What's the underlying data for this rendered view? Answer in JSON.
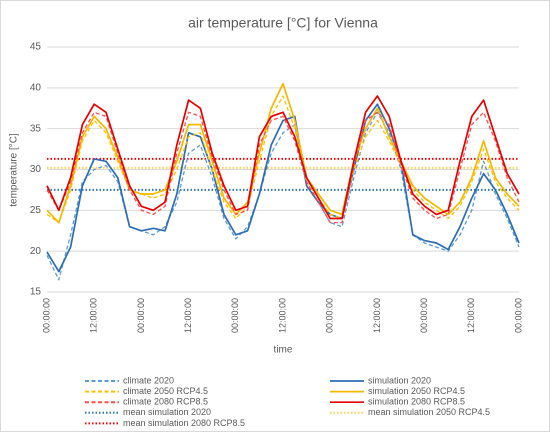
{
  "chart_data": {
    "type": "line",
    "title": "air temperature [°C] for Vienna",
    "x_label": "time",
    "y_label": "temperature [°C]",
    "categories": [
      "00:00:00",
      null,
      null,
      null,
      "12:00:00",
      null,
      null,
      null,
      "00:00:00",
      null,
      null,
      null,
      "12:00:00",
      null,
      null,
      null,
      "00:00:00",
      null,
      null,
      null,
      "12:00:00",
      null,
      null,
      null,
      "00:00:00",
      null,
      null,
      null,
      "12:00:00",
      null,
      null,
      null,
      "00:00:00",
      null,
      null,
      null,
      "12:00:00",
      null,
      null,
      null,
      "00:00:00"
    ],
    "ylim": [
      15,
      45
    ],
    "yticks": [
      15,
      20,
      25,
      30,
      35,
      40,
      45
    ],
    "grid": true,
    "legend": "bottom",
    "series": [
      {
        "name": "climate 2020",
        "color": "#5b9bd5",
        "style": "dashed",
        "values": [
          19.5,
          16.5,
          22,
          28.5,
          30,
          30.5,
          28.5,
          23,
          22.5,
          22,
          23,
          26,
          32,
          33,
          29,
          24,
          21.5,
          23,
          27,
          32,
          34.5,
          35.5,
          28,
          26,
          23.5,
          23,
          29,
          34.5,
          37,
          34.5,
          30,
          22,
          21,
          20.5,
          20,
          22,
          25,
          31,
          27,
          24,
          20.5
        ]
      },
      {
        "name": "simulation 2020",
        "color": "#2e6db4",
        "style": "solid",
        "values": [
          19.9,
          17.5,
          20.5,
          28,
          31.3,
          31,
          29,
          23,
          22.5,
          22.8,
          22.5,
          27,
          34.5,
          34,
          30,
          24.5,
          22,
          22.5,
          27,
          33,
          36,
          36.5,
          28,
          26,
          24.5,
          24,
          30,
          36,
          38,
          35,
          31,
          22,
          21.3,
          21,
          20.2,
          23,
          26.5,
          29.5,
          27.5,
          24.5,
          21
        ]
      },
      {
        "name": "climate 2050 RCP4.5",
        "color": "#ffc000",
        "style": "dashed",
        "values": [
          24.5,
          23.5,
          27.5,
          33.5,
          36,
          34.5,
          31,
          27.5,
          27,
          26.5,
          27,
          30,
          34,
          34.5,
          30,
          26,
          24,
          25.5,
          31,
          36.5,
          39,
          35,
          28.5,
          26.5,
          24.5,
          24,
          30,
          34,
          36,
          33.5,
          30.5,
          27.5,
          26,
          25,
          24,
          25.5,
          28.5,
          32.5,
          28.5,
          26.5,
          25
        ]
      },
      {
        "name": "simulation 2050 RCP4.5",
        "color": "#f5b800",
        "style": "solid",
        "values": [
          25,
          23.5,
          28,
          34,
          36.5,
          35,
          31.5,
          27.5,
          27,
          27,
          27.5,
          31,
          35.5,
          35.5,
          31,
          26.5,
          24.5,
          26,
          32,
          37.5,
          40.5,
          36,
          29,
          27,
          25,
          24.5,
          31,
          35,
          37.5,
          34,
          31,
          28,
          26.5,
          25.5,
          24.5,
          26,
          29,
          33.5,
          29,
          27,
          25.5
        ]
      },
      {
        "name": "climate 2080 RCP8.5",
        "color": "#ff4b4b",
        "style": "dashed",
        "values": [
          27.5,
          25,
          28.5,
          34.5,
          37,
          36.5,
          32,
          27.5,
          25,
          24.5,
          25.5,
          32,
          37,
          36.5,
          31.5,
          27.5,
          24.5,
          25,
          33,
          36,
          36.5,
          33.5,
          28.5,
          26,
          23.5,
          23.5,
          30.5,
          36,
          37,
          35.5,
          30.5,
          26.5,
          25,
          24,
          24.5,
          30,
          35.5,
          37,
          33.5,
          29,
          26
        ]
      },
      {
        "name": "simulation 2080 RCP8.5",
        "color": "#e60000",
        "style": "solid",
        "values": [
          28,
          25,
          29,
          35.5,
          38,
          37,
          32.5,
          28,
          25.5,
          25,
          26,
          33,
          38.5,
          37.5,
          32,
          28,
          25,
          25.5,
          34,
          36.5,
          37,
          34,
          29,
          26.5,
          24,
          24,
          31,
          37,
          39,
          36.5,
          31,
          27,
          25.5,
          24.5,
          25,
          31,
          36.5,
          38.5,
          34,
          29.5,
          27
        ]
      }
    ],
    "means": [
      {
        "name": "mean simulation 2020",
        "color": "#2e75b6",
        "value": 27.5
      },
      {
        "name": "mean simulation 2050 RCP4.5",
        "color": "#ffd24d",
        "value": 30.2
      },
      {
        "name": "mean simulation 2080 RCP8.5",
        "color": "#ff0000",
        "value": 31.3
      }
    ]
  }
}
